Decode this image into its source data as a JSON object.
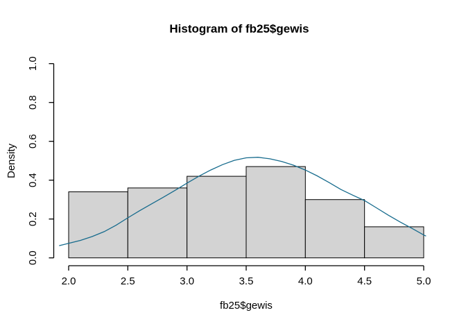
{
  "chart_data": {
    "type": "bar",
    "subtype": "histogram-with-density-curve",
    "title": "Histogram of fb25$gewis",
    "xlabel": "fb25$gewis",
    "ylabel": "Density",
    "xlim": [
      2.0,
      5.0
    ],
    "ylim": [
      0.0,
      1.0
    ],
    "x_ticks": [
      "2.0",
      "2.5",
      "3.0",
      "3.5",
      "4.0",
      "4.5",
      "5.0"
    ],
    "y_ticks": [
      "0.0",
      "0.2",
      "0.4",
      "0.6",
      "0.8",
      "1.0"
    ],
    "grid": "off",
    "legend": "none",
    "bins": {
      "breaks": [
        2.0,
        2.5,
        3.0,
        3.5,
        4.0,
        4.5,
        5.0
      ],
      "densities": [
        0.34,
        0.36,
        0.42,
        0.47,
        0.3,
        0.16
      ]
    },
    "density_curve": {
      "x": [
        1.92,
        2.0,
        2.1,
        2.2,
        2.3,
        2.4,
        2.5,
        2.6,
        2.7,
        2.8,
        2.9,
        3.0,
        3.1,
        3.2,
        3.3,
        3.4,
        3.5,
        3.6,
        3.7,
        3.8,
        3.9,
        4.0,
        4.1,
        4.2,
        4.3,
        4.4,
        4.5,
        4.6,
        4.7,
        4.8,
        4.9,
        5.0,
        5.02
      ],
      "y": [
        0.063,
        0.075,
        0.09,
        0.11,
        0.135,
        0.168,
        0.206,
        0.243,
        0.278,
        0.312,
        0.348,
        0.385,
        0.42,
        0.452,
        0.48,
        0.502,
        0.515,
        0.518,
        0.51,
        0.496,
        0.477,
        0.452,
        0.422,
        0.388,
        0.352,
        0.323,
        0.295,
        0.258,
        0.22,
        0.185,
        0.152,
        0.118,
        0.112
      ]
    },
    "colors": {
      "background": "#ffffff",
      "bar_fill": "#d3d3d3",
      "bar_border": "#000000",
      "curve": "#166b8d",
      "axis": "#000000",
      "text": "#000000"
    }
  }
}
